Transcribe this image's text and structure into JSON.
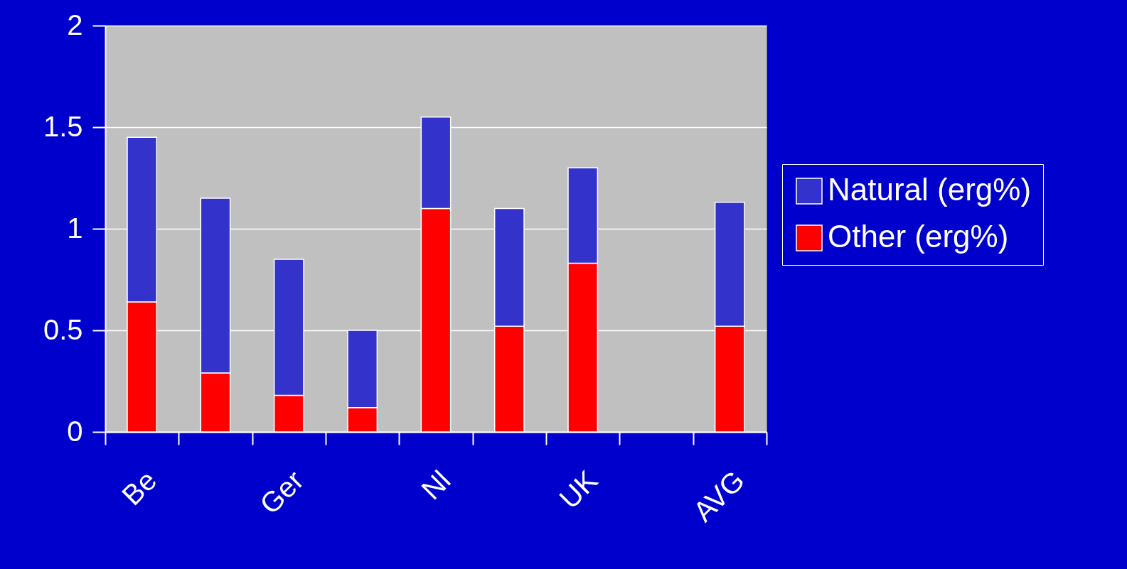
{
  "chart_data": {
    "type": "bar",
    "stacked": true,
    "categories": [
      "Be",
      null,
      "Ger",
      null,
      "Nl",
      null,
      "UK",
      null,
      "AVG"
    ],
    "series": [
      {
        "name": "Other (erg%)",
        "color": "#ff0000",
        "values": [
          0.64,
          0.29,
          0.18,
          0.12,
          1.1,
          0.52,
          0.83,
          null,
          0.52
        ]
      },
      {
        "name": "Natural (erg%)",
        "color": "#3333cc",
        "values": [
          0.81,
          0.86,
          0.67,
          0.38,
          0.45,
          0.58,
          0.47,
          null,
          0.61
        ]
      }
    ],
    "ylim": [
      0,
      2
    ],
    "yticks": [
      0,
      0.5,
      1,
      1.5,
      2
    ],
    "grid": "y",
    "legend": "right"
  }
}
